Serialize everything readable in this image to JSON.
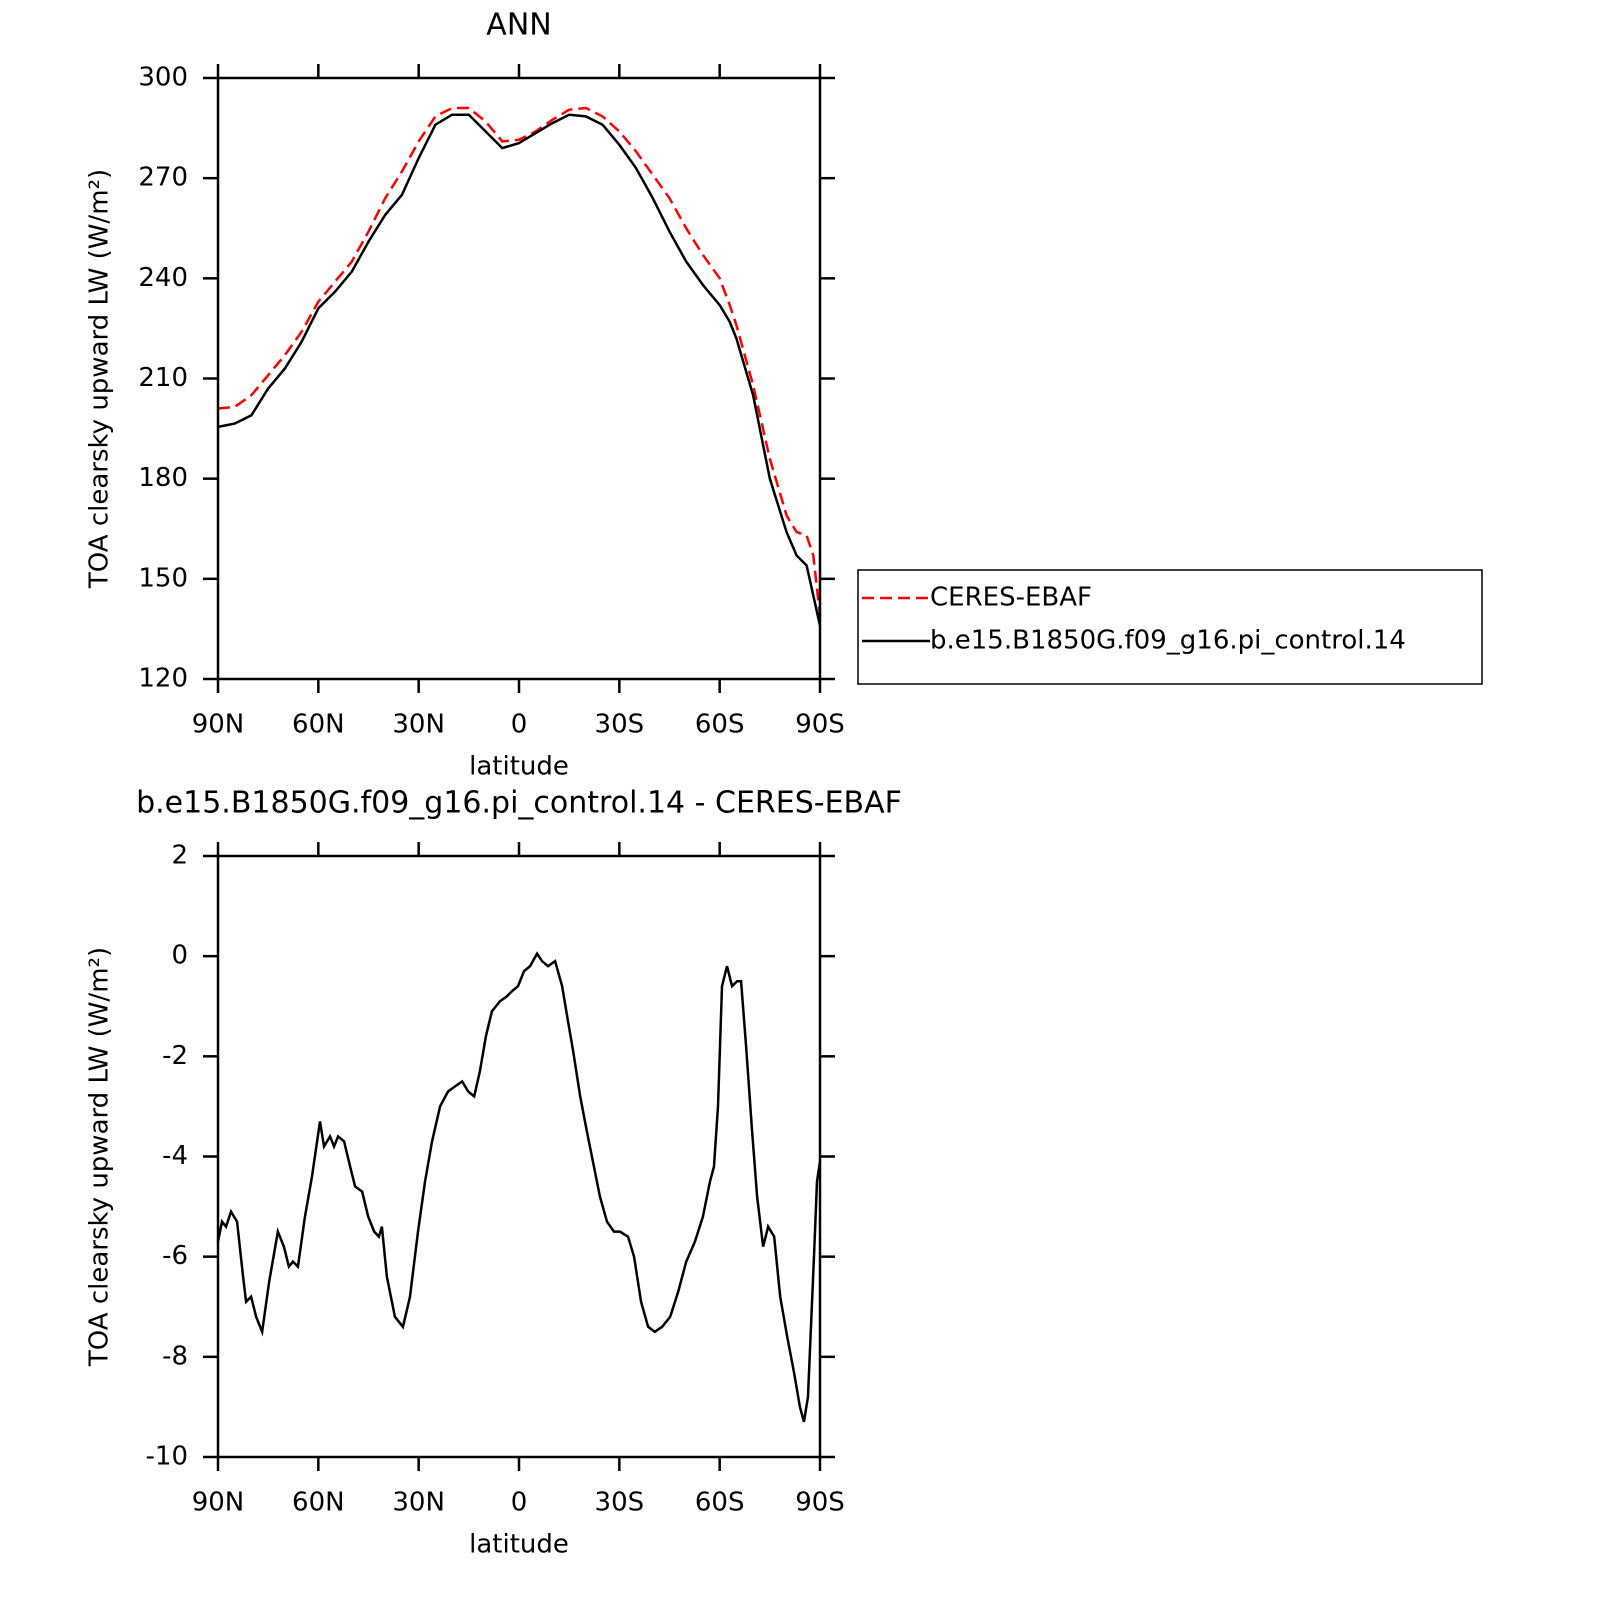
{
  "chart_data": [
    {
      "type": "line",
      "title": "ANN",
      "xlabel": "latitude",
      "ylabel": "TOA clearsky upward LW (W/m²)",
      "xlim": [
        90,
        -90
      ],
      "ylim": [
        120,
        300
      ],
      "xticks": [
        {
          "value": 90,
          "label": "90N"
        },
        {
          "value": 60,
          "label": "60N"
        },
        {
          "value": 30,
          "label": "30N"
        },
        0,
        {
          "value": -30,
          "label": "30S"
        },
        {
          "value": -60,
          "label": "60S"
        },
        {
          "value": -90,
          "label": "90S"
        }
      ],
      "yticks": [
        120,
        150,
        180,
        210,
        240,
        270,
        300
      ],
      "legend": "right",
      "x": [
        90,
        85,
        80,
        75,
        70,
        65,
        60,
        55,
        50,
        45,
        40,
        35,
        30,
        25,
        20,
        15,
        10,
        5,
        0,
        -5,
        -10,
        -15,
        -20,
        -25,
        -30,
        -35,
        -40,
        -45,
        -50,
        -55,
        -60,
        -63,
        -65,
        -70,
        -75,
        -80,
        -83,
        -86,
        -88,
        -90
      ],
      "series": [
        {
          "name": "CERES-EBAF",
          "color": "#ff0000",
          "dash": true,
          "values": [
            201,
            201.5,
            205,
            211,
            217,
            224,
            233,
            239,
            245,
            254,
            264,
            272,
            281,
            288.5,
            291,
            291,
            287,
            281,
            281.5,
            284,
            287.5,
            290.5,
            291,
            288.5,
            284,
            278,
            271,
            264,
            255,
            247,
            240,
            232,
            226,
            208,
            186,
            169,
            164,
            163,
            157,
            139
          ]
        },
        {
          "name": "b.e15.B1850G.f09_g16.pi_control.14",
          "color": "#000000",
          "dash": false,
          "values": [
            195.5,
            196.5,
            199,
            207,
            213,
            221,
            231,
            236,
            242,
            251,
            259,
            265,
            276,
            286,
            289,
            289,
            284,
            279,
            280.5,
            283.5,
            286.5,
            289,
            288.5,
            286,
            280,
            273,
            264,
            254,
            245,
            238,
            232,
            227,
            222,
            205,
            180,
            164,
            157,
            154,
            145,
            136
          ]
        }
      ]
    },
    {
      "type": "line",
      "title": "b.e15.B1850G.f09_g16.pi_control.14 - CERES-EBAF",
      "xlabel": "latitude",
      "ylabel": "TOA clearsky upward LW (W/m²)",
      "xlim": [
        90,
        -90
      ],
      "ylim": [
        -10,
        2
      ],
      "xticks": [
        {
          "value": 90,
          "label": "90N"
        },
        {
          "value": 60,
          "label": "60N"
        },
        {
          "value": 30,
          "label": "30N"
        },
        0,
        {
          "value": -30,
          "label": "30S"
        },
        {
          "value": -60,
          "label": "60S"
        },
        {
          "value": -90,
          "label": "90S"
        }
      ],
      "yticks": [
        -10,
        -8,
        -6,
        -4,
        -2,
        0,
        2
      ],
      "x": [
        90,
        88.8,
        87.6,
        86.1,
        84.3,
        82.5,
        81.6,
        80.1,
        78.6,
        76.8,
        74.7,
        72.1,
        70.3,
        68.8,
        67.6,
        66.1,
        64,
        61.9,
        59.5,
        58.3,
        56.5,
        55.3,
        54.1,
        52.3,
        50.5,
        49,
        46.9,
        45.1,
        43.3,
        41.9,
        41,
        39.5,
        37.1,
        34.7,
        32.6,
        30.2,
        28.1,
        26,
        23.6,
        21.2,
        19.1,
        17,
        15.2,
        13.4,
        11.7,
        9.9,
        8.1,
        5.7,
        3.6,
        2.1,
        0.3,
        -1.5,
        -3.3,
        -5.4,
        -6.9,
        -8.7,
        -10.8,
        -12.9,
        -14.4,
        -16.2,
        -18.3,
        -20.3,
        -22.4,
        -24.2,
        -26.3,
        -28.4,
        -30.2,
        -32.6,
        -34.4,
        -36.5,
        -38.6,
        -40.6,
        -42.8,
        -45.2,
        -47.6,
        -50,
        -52.6,
        -55,
        -57.1,
        -58.3,
        -59.5,
        -60.7,
        -62.2,
        -63.7,
        -65.2,
        -66.4,
        -67.9,
        -69.7,
        -71.2,
        -73,
        -74.5,
        -76.3,
        -78.1,
        -80.2,
        -82.2,
        -84,
        -85.2,
        -86.4,
        -88.2,
        -89.1,
        -90
      ],
      "series": [
        {
          "name": "b.e15.B1850G.f09_g16.pi_control.14 - CERES-EBAF",
          "color": "#000000",
          "dash": false,
          "values": [
            -5.7,
            -5.3,
            -5.4,
            -5.1,
            -5.3,
            -6.4,
            -6.9,
            -6.8,
            -7.2,
            -7.5,
            -6.5,
            -5.5,
            -5.8,
            -6.2,
            -6.1,
            -6.2,
            -5.2,
            -4.4,
            -3.3,
            -3.8,
            -3.6,
            -3.8,
            -3.6,
            -3.7,
            -4.2,
            -4.6,
            -4.7,
            -5.2,
            -5.5,
            -5.6,
            -5.4,
            -6.4,
            -7.2,
            -7.4,
            -6.8,
            -5.5,
            -4.5,
            -3.7,
            -3,
            -2.7,
            -2.6,
            -2.5,
            -2.7,
            -2.8,
            -2.3,
            -1.6,
            -1.1,
            -0.9,
            -0.8,
            -0.7,
            -0.6,
            -0.3,
            -0.2,
            0.05,
            -0.1,
            -0.2,
            -0.1,
            -0.6,
            -1.2,
            -1.9,
            -2.8,
            -3.5,
            -4.2,
            -4.8,
            -5.3,
            -5.5,
            -5.5,
            -5.6,
            -6,
            -6.9,
            -7.4,
            -7.5,
            -7.4,
            -7.2,
            -6.7,
            -6.1,
            -5.7,
            -5.2,
            -4.5,
            -4.2,
            -3,
            -0.6,
            -0.2,
            -0.6,
            -0.5,
            -0.5,
            -1.8,
            -3.5,
            -4.8,
            -5.8,
            -5.4,
            -5.6,
            -6.8,
            -7.6,
            -8.3,
            -9,
            -9.3,
            -8.8,
            -6,
            -4.5,
            -4.1
          ]
        }
      ]
    }
  ]
}
